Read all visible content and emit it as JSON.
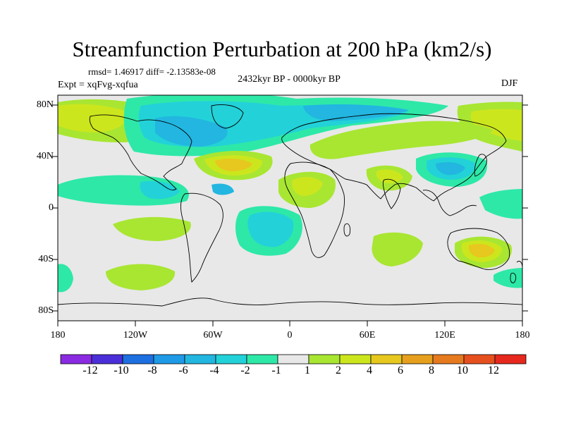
{
  "title": "Streamfunction Perturbation at 200 hPa (km2/s)",
  "stats": "rmsd= 1.46917 diff= -2.13583e-08",
  "experiment": "Expt = xqFvg-xqfua",
  "period": "2432kyr BP - 0000kyr BP",
  "season": "DJF",
  "lat_ticks": [
    "80N",
    "40N",
    "0",
    "40S",
    "80S"
  ],
  "lon_ticks": [
    "180",
    "120W",
    "60W",
    "0",
    "60E",
    "120E",
    "180"
  ],
  "colorbar": {
    "colors": [
      "#8a2be2",
      "#4a2fd8",
      "#1e6fe0",
      "#1f9ae6",
      "#22b6e0",
      "#22d2d8",
      "#2ee8a8",
      "#e8e8e8",
      "#a8e632",
      "#cce61e",
      "#e6c81e",
      "#e6a01e",
      "#e67a1e",
      "#e6501e",
      "#e6281e"
    ],
    "labels": [
      "-12",
      "-10",
      "-8",
      "-6",
      "-4",
      "-2",
      "-1",
      "1",
      "2",
      "4",
      "6",
      "8",
      "10",
      "12"
    ]
  }
}
